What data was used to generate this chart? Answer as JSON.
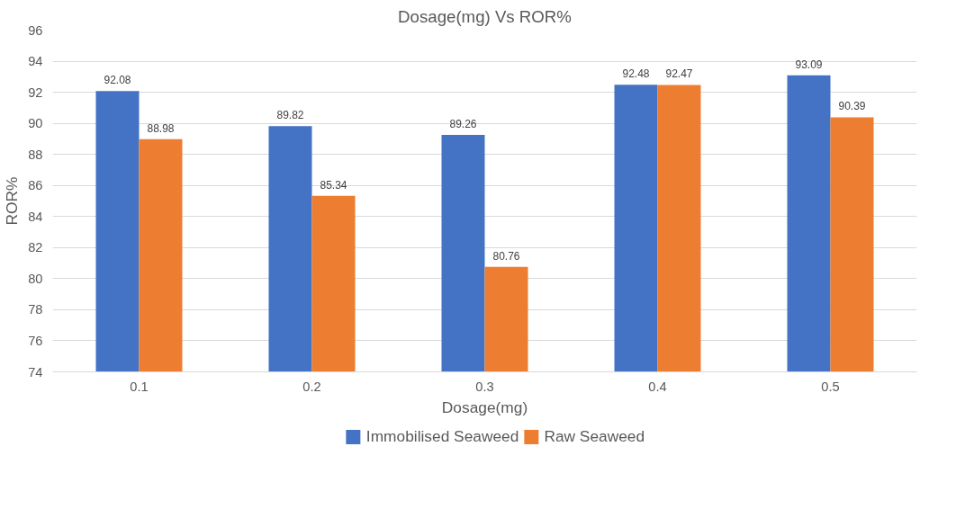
{
  "chart_data": {
    "type": "bar",
    "title": "Dosage(mg) Vs ROR%",
    "xlabel": "Dosage(mg)",
    "ylabel": "ROR%",
    "categories": [
      "0.1",
      "0.2",
      "0.3",
      "0.4",
      "0.5"
    ],
    "series": [
      {
        "name": "Immobilised Seaweed",
        "color": "#4472c4",
        "values": [
          92.08,
          89.82,
          89.26,
          92.48,
          93.09
        ]
      },
      {
        "name": "Raw Seaweed",
        "color": "#ed7d31",
        "values": [
          88.98,
          85.34,
          80.76,
          92.47,
          90.39
        ]
      }
    ],
    "ylim": [
      74,
      96
    ],
    "yticks": [
      74,
      76,
      78,
      80,
      82,
      84,
      86,
      88,
      90,
      92,
      94,
      96
    ],
    "grid": "y",
    "legend": "bottom",
    "data_labels": true
  }
}
